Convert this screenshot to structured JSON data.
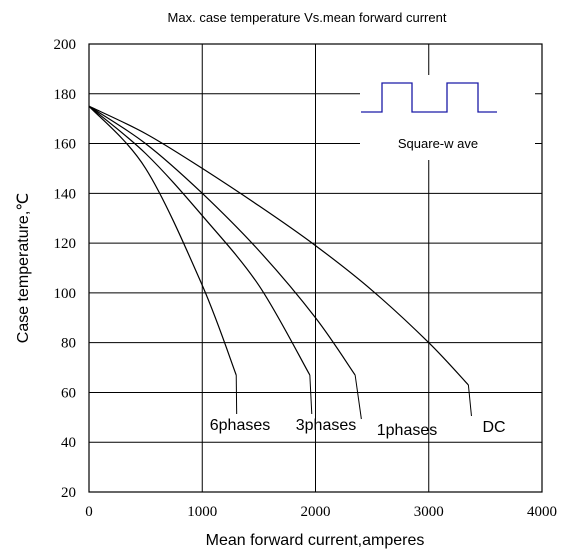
{
  "chart_data": {
    "type": "line",
    "title": "Max. case temperature  Vs.mean  forward  current",
    "xlabel": "Mean  forward  current,amperes",
    "ylabel": "Case temperature,℃",
    "xlim": [
      0,
      4000
    ],
    "ylim": [
      20,
      200
    ],
    "x_ticks": [
      "0",
      "1000",
      "2000",
      "3000",
      "4000"
    ],
    "y_ticks": [
      "20",
      "40",
      "60",
      "80",
      "100",
      "120",
      "140",
      "160",
      "180",
      "200"
    ],
    "grid": true,
    "legend": {
      "label": "Square-w ave",
      "position": "top-right"
    },
    "series": [
      {
        "name": "DC",
        "x": [
          0,
          500,
          1000,
          1500,
          2000,
          2500,
          3000,
          3350
        ],
        "y": [
          175,
          164,
          150,
          135,
          119,
          101,
          80,
          63
        ]
      },
      {
        "name": "1phases",
        "x": [
          0,
          500,
          1000,
          1500,
          2000,
          2350
        ],
        "y": [
          175,
          160,
          140,
          117,
          90,
          67
        ]
      },
      {
        "name": "3phases",
        "x": [
          0,
          500,
          1000,
          1500,
          1950
        ],
        "y": [
          175,
          156,
          131,
          103,
          67
        ]
      },
      {
        "name": "6phases",
        "x": [
          0,
          500,
          1000,
          1300
        ],
        "y": [
          175,
          150,
          103,
          67
        ]
      }
    ]
  }
}
